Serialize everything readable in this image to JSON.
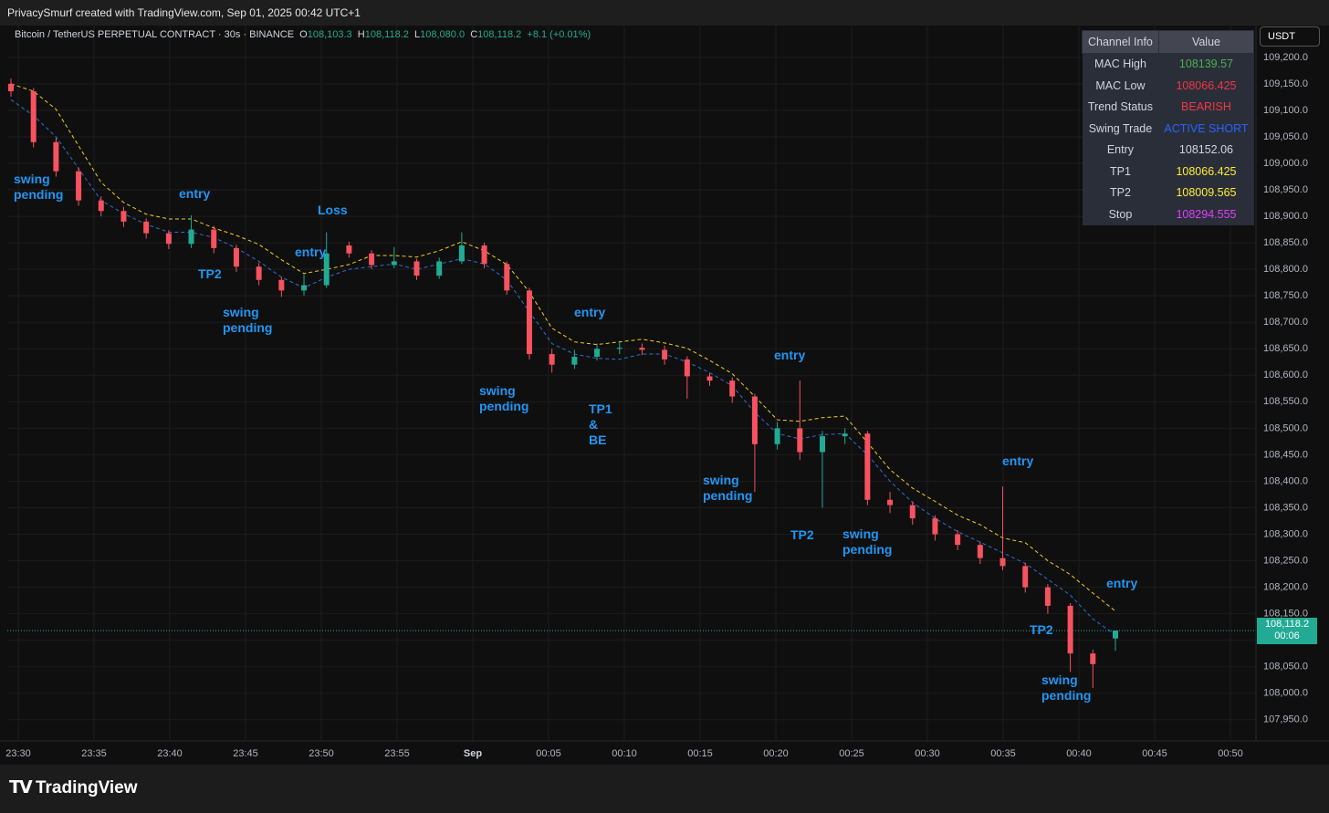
{
  "header": {
    "text": "PrivacySmurf created with TradingView.com, Sep 01, 2025 00:42 UTC+1"
  },
  "legend": {
    "symbol": "Bitcoin / TetherUS PERPETUAL CONTRACT · 30s · BINANCE",
    "o_label": "O",
    "o": "108,103.3",
    "h_label": "H",
    "h": "108,118.2",
    "l_label": "L",
    "l": "108,080.0",
    "c_label": "C",
    "c": "108,118.2",
    "change": "+8.1 (+0.01%)"
  },
  "currency": "USDT",
  "price_tag": {
    "price": "108,118.2",
    "countdown": "00:06"
  },
  "table": {
    "headers": [
      "Channel Info",
      "Value"
    ],
    "rows": [
      [
        "MAC High",
        "108139.57"
      ],
      [
        "MAC Low",
        "108066.425"
      ],
      [
        "Trend Status",
        "BEARISH"
      ],
      [
        "Swing Trade",
        "ACTIVE SHORT"
      ],
      [
        "Entry",
        "108152.06"
      ],
      [
        "TP1",
        "108066.425"
      ],
      [
        "TP2",
        "108009.565"
      ],
      [
        "Stop",
        "108294.555"
      ]
    ],
    "value_colors": [
      "#4caf50",
      "#f23645",
      "#f23645",
      "#2962ff",
      "#d1d4dc",
      "#ffeb3b",
      "#ffeb3b",
      "#e040fb"
    ]
  },
  "annotations": [
    "swing pending",
    "entry",
    "TP2",
    "Loss",
    "entry",
    "swing pending",
    "entry",
    "swing pending",
    "TP1 & BE",
    "entry",
    "swing pending",
    "TP2",
    "swing pending",
    "entry",
    "TP2",
    "entry",
    "swing pending"
  ],
  "footer": {
    "logo": "TradingView"
  },
  "chart_data": {
    "type": "candlestick",
    "xtick_labels": [
      "23:30",
      "23:35",
      "23:40",
      "23:45",
      "23:50",
      "23:55",
      "Sep",
      "00:05",
      "00:10",
      "00:15",
      "00:20",
      "00:25",
      "00:30",
      "00:35",
      "00:40",
      "00:45",
      "00:50"
    ],
    "ylim": [
      107910,
      109260
    ],
    "yticks": [
      {
        "value": 107950,
        "label": "107,950.0"
      },
      {
        "value": 108000,
        "label": "108,000.0"
      },
      {
        "value": 108050,
        "label": "108,050.0"
      },
      {
        "value": 108100,
        "label": "108,100.0"
      },
      {
        "value": 108150,
        "label": "108,150.0"
      },
      {
        "value": 108200,
        "label": "108,200.0"
      },
      {
        "value": 108250,
        "label": "108,250.0"
      },
      {
        "value": 108300,
        "label": "108,300.0"
      },
      {
        "value": 108350,
        "label": "108,350.0"
      },
      {
        "value": 108400,
        "label": "108,400.0"
      },
      {
        "value": 108450,
        "label": "108,450.0"
      },
      {
        "value": 108500,
        "label": "108,500.0"
      },
      {
        "value": 108550,
        "label": "108,550.0"
      },
      {
        "value": 108600,
        "label": "108,600.0"
      },
      {
        "value": 108650,
        "label": "108,650.0"
      },
      {
        "value": 108700,
        "label": "108,700.0"
      },
      {
        "value": 108750,
        "label": "108,750.0"
      },
      {
        "value": 108800,
        "label": "108,800.0"
      },
      {
        "value": 108850,
        "label": "108,850.0"
      },
      {
        "value": 108900,
        "label": "108,900.0"
      },
      {
        "value": 108950,
        "label": "108,950.0"
      },
      {
        "value": 109000,
        "label": "109,000.0"
      },
      {
        "value": 109050,
        "label": "109,050.0"
      },
      {
        "value": 109100,
        "label": "109,100.0"
      },
      {
        "value": 109150,
        "label": "109,150.0"
      },
      {
        "value": 109200,
        "label": "109,200.0"
      }
    ],
    "grid": true,
    "up_color": "#22ab94",
    "down_color": "#f7525f",
    "open": [
      109150,
      109136,
      109040,
      108985,
      108930,
      108910,
      108890,
      108868,
      108848,
      108875,
      108840,
      108805,
      108780,
      108760,
      108770,
      108845,
      108830,
      108808,
      108815,
      108788,
      108815,
      108845,
      108810,
      108760,
      108640,
      108620,
      108635,
      108650,
      108652,
      108648,
      108630,
      108598,
      108590,
      108560,
      108470,
      108500,
      108455,
      108485,
      108490,
      108365,
      108355,
      108330,
      108300,
      108280,
      108255,
      108240,
      108200,
      108165,
      108075,
      108103.3
    ],
    "high": [
      109160,
      109142,
      109048,
      108992,
      108938,
      108918,
      108896,
      108874,
      108902,
      108882,
      108846,
      108812,
      108786,
      108790,
      108870,
      108852,
      108836,
      108842,
      108820,
      108822,
      108870,
      108850,
      108815,
      108765,
      108650,
      108648,
      108660,
      108665,
      108660,
      108656,
      108636,
      108604,
      108596,
      108565,
      108512,
      108590,
      108495,
      108500,
      108495,
      108380,
      108362,
      108336,
      108308,
      108286,
      108390,
      108246,
      108206,
      108170,
      108082,
      108118.2
    ],
    "low": [
      109126,
      109030,
      108975,
      108920,
      108900,
      108880,
      108858,
      108838,
      108840,
      108830,
      108795,
      108770,
      108748,
      108750,
      108765,
      108822,
      108800,
      108802,
      108780,
      108782,
      108810,
      108802,
      108752,
      108630,
      108605,
      108612,
      108628,
      108640,
      108638,
      108620,
      108556,
      108580,
      108548,
      108380,
      108460,
      108440,
      108350,
      108470,
      108355,
      108340,
      108318,
      108288,
      108270,
      108244,
      108232,
      108190,
      108150,
      108040,
      108010,
      108080.0
    ],
    "close": [
      109136,
      109040,
      108985,
      108930,
      108910,
      108890,
      108868,
      108848,
      108875,
      108840,
      108805,
      108780,
      108760,
      108770,
      108830,
      108830,
      108808,
      108815,
      108788,
      108815,
      108845,
      108810,
      108760,
      108640,
      108620,
      108635,
      108650,
      108652,
      108648,
      108630,
      108598,
      108590,
      108560,
      108470,
      108500,
      108455,
      108485,
      108490,
      108365,
      108355,
      108330,
      108300,
      108280,
      108255,
      108240,
      108200,
      108165,
      108075,
      108055,
      108118.2
    ],
    "series": [
      {
        "color": "#f5d020",
        "values": [
          109150,
          109136,
          109102,
          109033,
          108964,
          108926,
          108904,
          108895,
          108895,
          108878,
          108864,
          108847,
          108818,
          108792,
          108800,
          108809,
          108826,
          108826,
          108823,
          108835,
          108852,
          108835,
          108809,
          108757,
          108689,
          108663,
          108658,
          108663,
          108668,
          108661,
          108651,
          108628,
          108603,
          108560,
          108516,
          108513,
          108520,
          108523,
          108473,
          108422,
          108387,
          108362,
          108336,
          108318,
          108293,
          108284,
          108250,
          108224,
          108189,
          108155
        ]
      },
      {
        "color": "#2f6fd6",
        "values": [
          109120,
          109090,
          109050,
          108990,
          108930,
          108905,
          108885,
          108870,
          108870,
          108860,
          108840,
          108815,
          108785,
          108765,
          108785,
          108800,
          108805,
          108810,
          108800,
          108810,
          108820,
          108810,
          108780,
          108720,
          108660,
          108640,
          108632,
          108630,
          108640,
          108640,
          108625,
          108605,
          108580,
          108530,
          108490,
          108480,
          108488,
          108490,
          108450,
          108400,
          108360,
          108330,
          108305,
          108285,
          108265,
          108245,
          108215,
          108185,
          108140,
          108110
        ]
      }
    ]
  }
}
